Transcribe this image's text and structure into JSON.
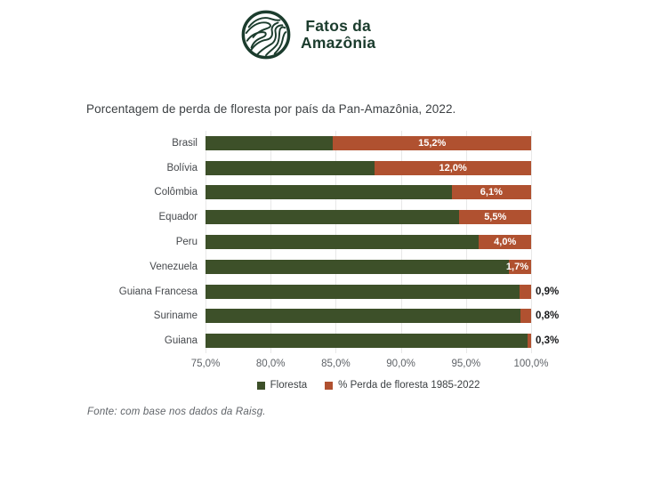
{
  "logo": {
    "line1": "Fatos da",
    "line2": "Amazônia"
  },
  "title": "Porcentagem de perda de floresta por país da Pan-Amazônia, 2022.",
  "source": "Fonte: com base nos dados da Raisg.",
  "colors": {
    "forest": "#3d5029",
    "loss": "#b05130",
    "logo_green": "#1b3c2d",
    "gridline": "#e8e8e8"
  },
  "chart_data": {
    "type": "bar",
    "orientation": "horizontal",
    "stacked": true,
    "title": "Porcentagem de perda de floresta por país da Pan-Amazônia, 2022.",
    "categories": [
      "Brasil",
      "Bolívia",
      "Colômbia",
      "Equador",
      "Peru",
      "Venezuela",
      "Guiana Francesa",
      "Suriname",
      "Guiana"
    ],
    "series": [
      {
        "name": "Floresta",
        "values": [
          84.8,
          88.0,
          93.9,
          94.5,
          96.0,
          98.3,
          99.1,
          99.2,
          99.7
        ]
      },
      {
        "name": "% Perda de floresta 1985-2022",
        "values": [
          15.2,
          12.0,
          6.1,
          5.5,
          4.0,
          1.7,
          0.9,
          0.8,
          0.3
        ]
      }
    ],
    "value_labels": [
      "15,2%",
      "12,0%",
      "6,1%",
      "5,5%",
      "4,0%",
      "1,7%",
      "0,9%",
      "0,8%",
      "0,3%"
    ],
    "label_placement": [
      "inside",
      "inside",
      "inside",
      "inside",
      "inside",
      "inside-right",
      "outside",
      "outside",
      "outside"
    ],
    "xlim": [
      75,
      100
    ],
    "x_ticks": [
      "75,0%",
      "80,0%",
      "85,0%",
      "90,0%",
      "95,0%",
      "100,0%"
    ],
    "legend": [
      "Floresta",
      "% Perda de floresta 1985-2022"
    ],
    "legend_position": "bottom",
    "grid": "vertical"
  }
}
